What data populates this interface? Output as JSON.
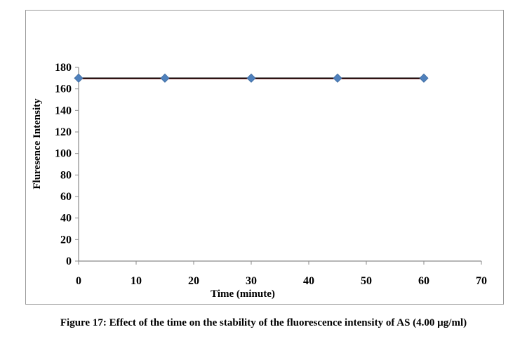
{
  "caption": "Figure 17: Effect of the time on the stability of the fluorescence intensity of AS (4.00 µg/ml)",
  "chart_data": {
    "type": "scatter",
    "x": [
      0,
      15,
      30,
      45,
      60
    ],
    "y": [
      170,
      170,
      170,
      170,
      170
    ],
    "trendline": {
      "type": "linear",
      "slope": 0,
      "intercept": 170,
      "color": "#000000",
      "accent_color": "#8b1a1a"
    },
    "marker": {
      "shape": "diamond",
      "color": "#4f81bd"
    },
    "xlabel": "Time (minute)",
    "ylabel": "Fluresence Intensity",
    "xlim": [
      0,
      70
    ],
    "ylim": [
      0,
      180
    ],
    "xticks": [
      0,
      10,
      20,
      30,
      40,
      50,
      60,
      70
    ],
    "yticks": [
      0,
      20,
      40,
      60,
      80,
      100,
      120,
      140,
      160,
      180
    ],
    "grid": false,
    "legend": "none"
  }
}
